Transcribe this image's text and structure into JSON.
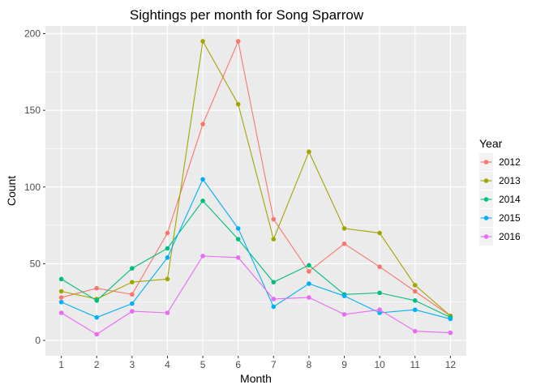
{
  "chart_data": {
    "type": "line",
    "title": "Sightings per month for Song Sparrow",
    "xlabel": "Month",
    "ylabel": "Count",
    "x": [
      1,
      2,
      3,
      4,
      5,
      6,
      7,
      8,
      9,
      10,
      11,
      12
    ],
    "x_ticks": [
      "1",
      "2",
      "3",
      "4",
      "5",
      "6",
      "7",
      "8",
      "9",
      "10",
      "11",
      "12"
    ],
    "xlim": [
      0.55,
      12.45
    ],
    "y_ticks": [
      "0",
      "50",
      "100",
      "150",
      "200"
    ],
    "ylim": [
      -10,
      205
    ],
    "grid": true,
    "legend": {
      "title": "Year",
      "position": "right"
    },
    "series": [
      {
        "name": "2012",
        "color": "#F8766D",
        "values": [
          28,
          34,
          30,
          70,
          141,
          195,
          79,
          45,
          63,
          48,
          32,
          16
        ]
      },
      {
        "name": "2013",
        "color": "#A3A500",
        "values": [
          32,
          27,
          38,
          40,
          195,
          154,
          66,
          123,
          73,
          70,
          36,
          16
        ]
      },
      {
        "name": "2014",
        "color": "#00BF7D",
        "values": [
          40,
          26,
          47,
          60,
          91,
          66,
          38,
          49,
          30,
          31,
          26,
          15
        ]
      },
      {
        "name": "2015",
        "color": "#00B0F6",
        "values": [
          25,
          15,
          24,
          54,
          105,
          73,
          22,
          37,
          29,
          18,
          20,
          14
        ]
      },
      {
        "name": "2016",
        "color": "#E76BF3",
        "values": [
          18,
          4,
          19,
          18,
          55,
          54,
          27,
          28,
          17,
          20,
          6,
          5
        ]
      }
    ]
  }
}
